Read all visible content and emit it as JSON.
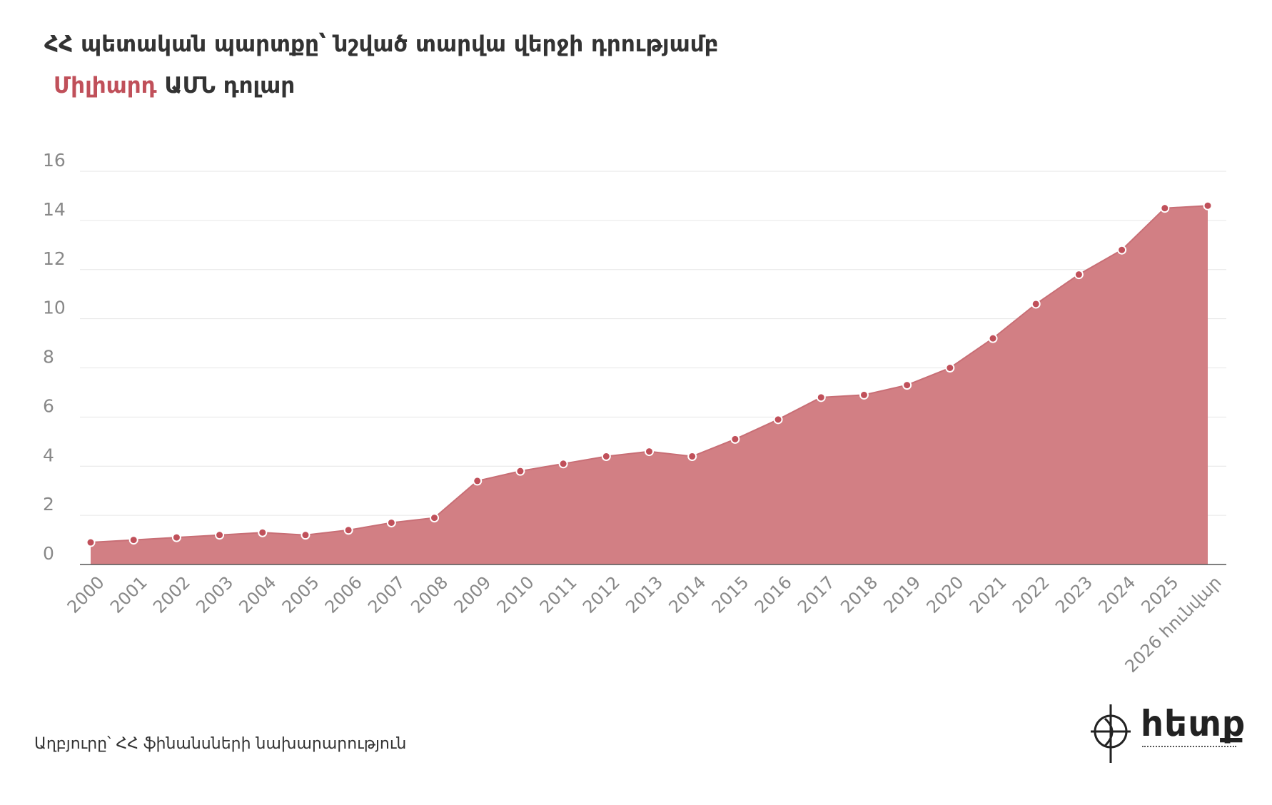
{
  "header": {
    "title": "ՀՀ պետական պարտքը՝ նշված տարվա վերջի դրությամբ",
    "subtitle_accent": "Միլիարդ",
    "subtitle_rest": "ԱՄՆ դոլար"
  },
  "footer": {
    "source": "Աղբյուրը՝ ՀՀ ֆինանսների նախարարություն",
    "logo_text": "հետք"
  },
  "colors": {
    "area": "#d27f84",
    "area_stroke": "#c86e75",
    "point_fill": "#c0505a",
    "accent": "#c0505a",
    "grid": "#e6e6e6",
    "axis_labels": "#888888"
  },
  "chart_data": {
    "type": "area",
    "title": "ՀՀ պետական պարտքը՝ նշված տարվա վերջի դրությամբ",
    "subtitle": "Միլիարդ ԱՄՆ դոլար",
    "xlabel": "",
    "ylabel": "",
    "ylim": [
      0,
      16
    ],
    "yticks": [
      0,
      2,
      4,
      6,
      8,
      10,
      12,
      14,
      16
    ],
    "grid": true,
    "legend": "none",
    "categories": [
      "2000",
      "2001",
      "2002",
      "2003",
      "2004",
      "2005",
      "2006",
      "2007",
      "2008",
      "2009",
      "2010",
      "2011",
      "2012",
      "2013",
      "2014",
      "2015",
      "2016",
      "2017",
      "2018",
      "2019",
      "2020",
      "2021",
      "2022",
      "2023",
      "2024",
      "2025",
      "2026 հունվար"
    ],
    "series": [
      {
        "values": [
          0.9,
          1.0,
          1.1,
          1.2,
          1.3,
          1.2,
          1.4,
          1.7,
          1.9,
          3.4,
          3.8,
          4.1,
          4.4,
          4.6,
          4.4,
          5.1,
          5.9,
          6.8,
          6.9,
          7.3,
          8.0,
          9.2,
          10.6,
          11.8,
          12.8,
          14.5,
          14.6
        ]
      }
    ]
  }
}
